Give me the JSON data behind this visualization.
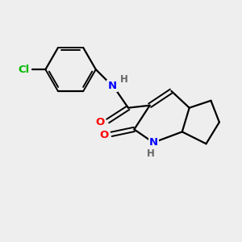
{
  "bg_color": "#eeeeee",
  "bond_color": "#000000",
  "N_color": "#0000ff",
  "O_color": "#ff0000",
  "Cl_color": "#00bb00",
  "figsize": [
    3.0,
    3.0
  ],
  "dpi": 100,
  "xlim": [
    0,
    10
  ],
  "ylim": [
    0,
    10
  ]
}
